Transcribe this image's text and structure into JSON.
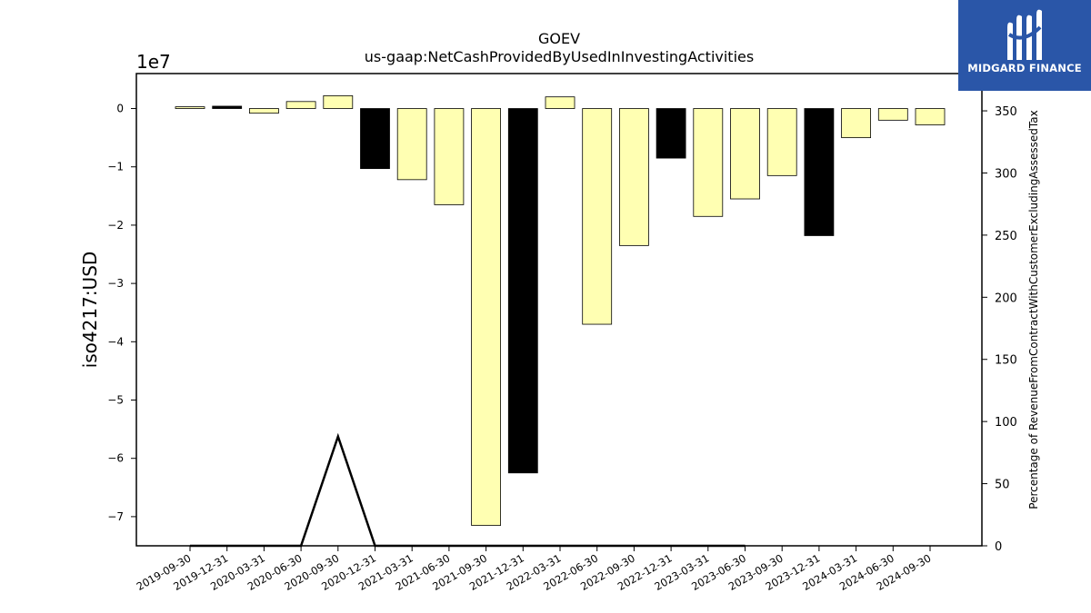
{
  "chart_data": {
    "type": "bar",
    "title": "GOEV",
    "subtitle": "us-gaap:NetCashProvidedByUsedInInvestingActivities",
    "ylabel": "iso4217:USD",
    "y_offset_label": "1e7",
    "y2label": "Percentage of RevenueFromContractWithCustomerExcludingAssessedTax",
    "ylim": [
      -75000000,
      6000000
    ],
    "y2lim": [
      0,
      380
    ],
    "yticks": [
      0,
      -10000000,
      -20000000,
      -30000000,
      -40000000,
      -50000000,
      -60000000,
      -70000000
    ],
    "ytick_labels": [
      "0",
      "−1",
      "−2",
      "−3",
      "−4",
      "−5",
      "−6",
      "−7"
    ],
    "y2ticks": [
      0,
      50,
      100,
      150,
      200,
      250,
      300,
      350
    ],
    "y2tick_labels": [
      "0",
      "50",
      "100",
      "150",
      "200",
      "250",
      "300",
      "350"
    ],
    "categories": [
      "2019-09-30",
      "2019-12-31",
      "2020-03-31",
      "2020-06-30",
      "2020-09-30",
      "2020-12-31",
      "2021-03-31",
      "2021-06-30",
      "2021-09-30",
      "2021-12-31",
      "2022-03-31",
      "2022-06-30",
      "2022-09-30",
      "2022-12-31",
      "2023-03-31",
      "2023-06-30",
      "2023-09-30",
      "2023-12-31",
      "2024-03-31",
      "2024-06-30",
      "2024-09-30"
    ],
    "values": [
      300000,
      400000,
      -800000,
      1200000,
      2200000,
      -10300000,
      -12200000,
      -16500000,
      -71500000,
      -62500000,
      2000000,
      -37000000,
      -23500000,
      -8500000,
      -18500000,
      -15500000,
      -11500000,
      -21800000,
      -5000000,
      -2000000,
      -2800000
    ],
    "bar_fill": [
      "yellow",
      "black",
      "yellow",
      "yellow",
      "yellow",
      "black",
      "yellow",
      "yellow",
      "yellow",
      "black",
      "yellow",
      "yellow",
      "yellow",
      "black",
      "yellow",
      "yellow",
      "yellow",
      "black",
      "yellow",
      "yellow",
      "yellow"
    ],
    "line_series": {
      "x_categories": [
        "2019-09-30",
        "2019-12-31",
        "2020-03-31",
        "2020-06-30",
        "2020-09-30",
        "2020-12-31",
        "2021-03-31",
        "2021-06-30",
        "2021-09-30",
        "2021-12-31",
        "2022-03-31",
        "2022-06-30",
        "2022-09-30",
        "2022-12-31",
        "2023-03-31",
        "2023-06-30"
      ],
      "values": [
        0,
        0,
        0,
        0,
        88,
        0,
        0,
        0,
        0,
        0,
        0,
        0,
        0,
        0,
        0,
        0
      ]
    },
    "colors": {
      "bar_yellow": "#ffffb2",
      "bar_black": "#000000",
      "edge": "#000000",
      "line": "#000000"
    },
    "grid": false
  },
  "logo": {
    "text": "MIDGARD FINANCE",
    "background": "#2a56a8"
  }
}
